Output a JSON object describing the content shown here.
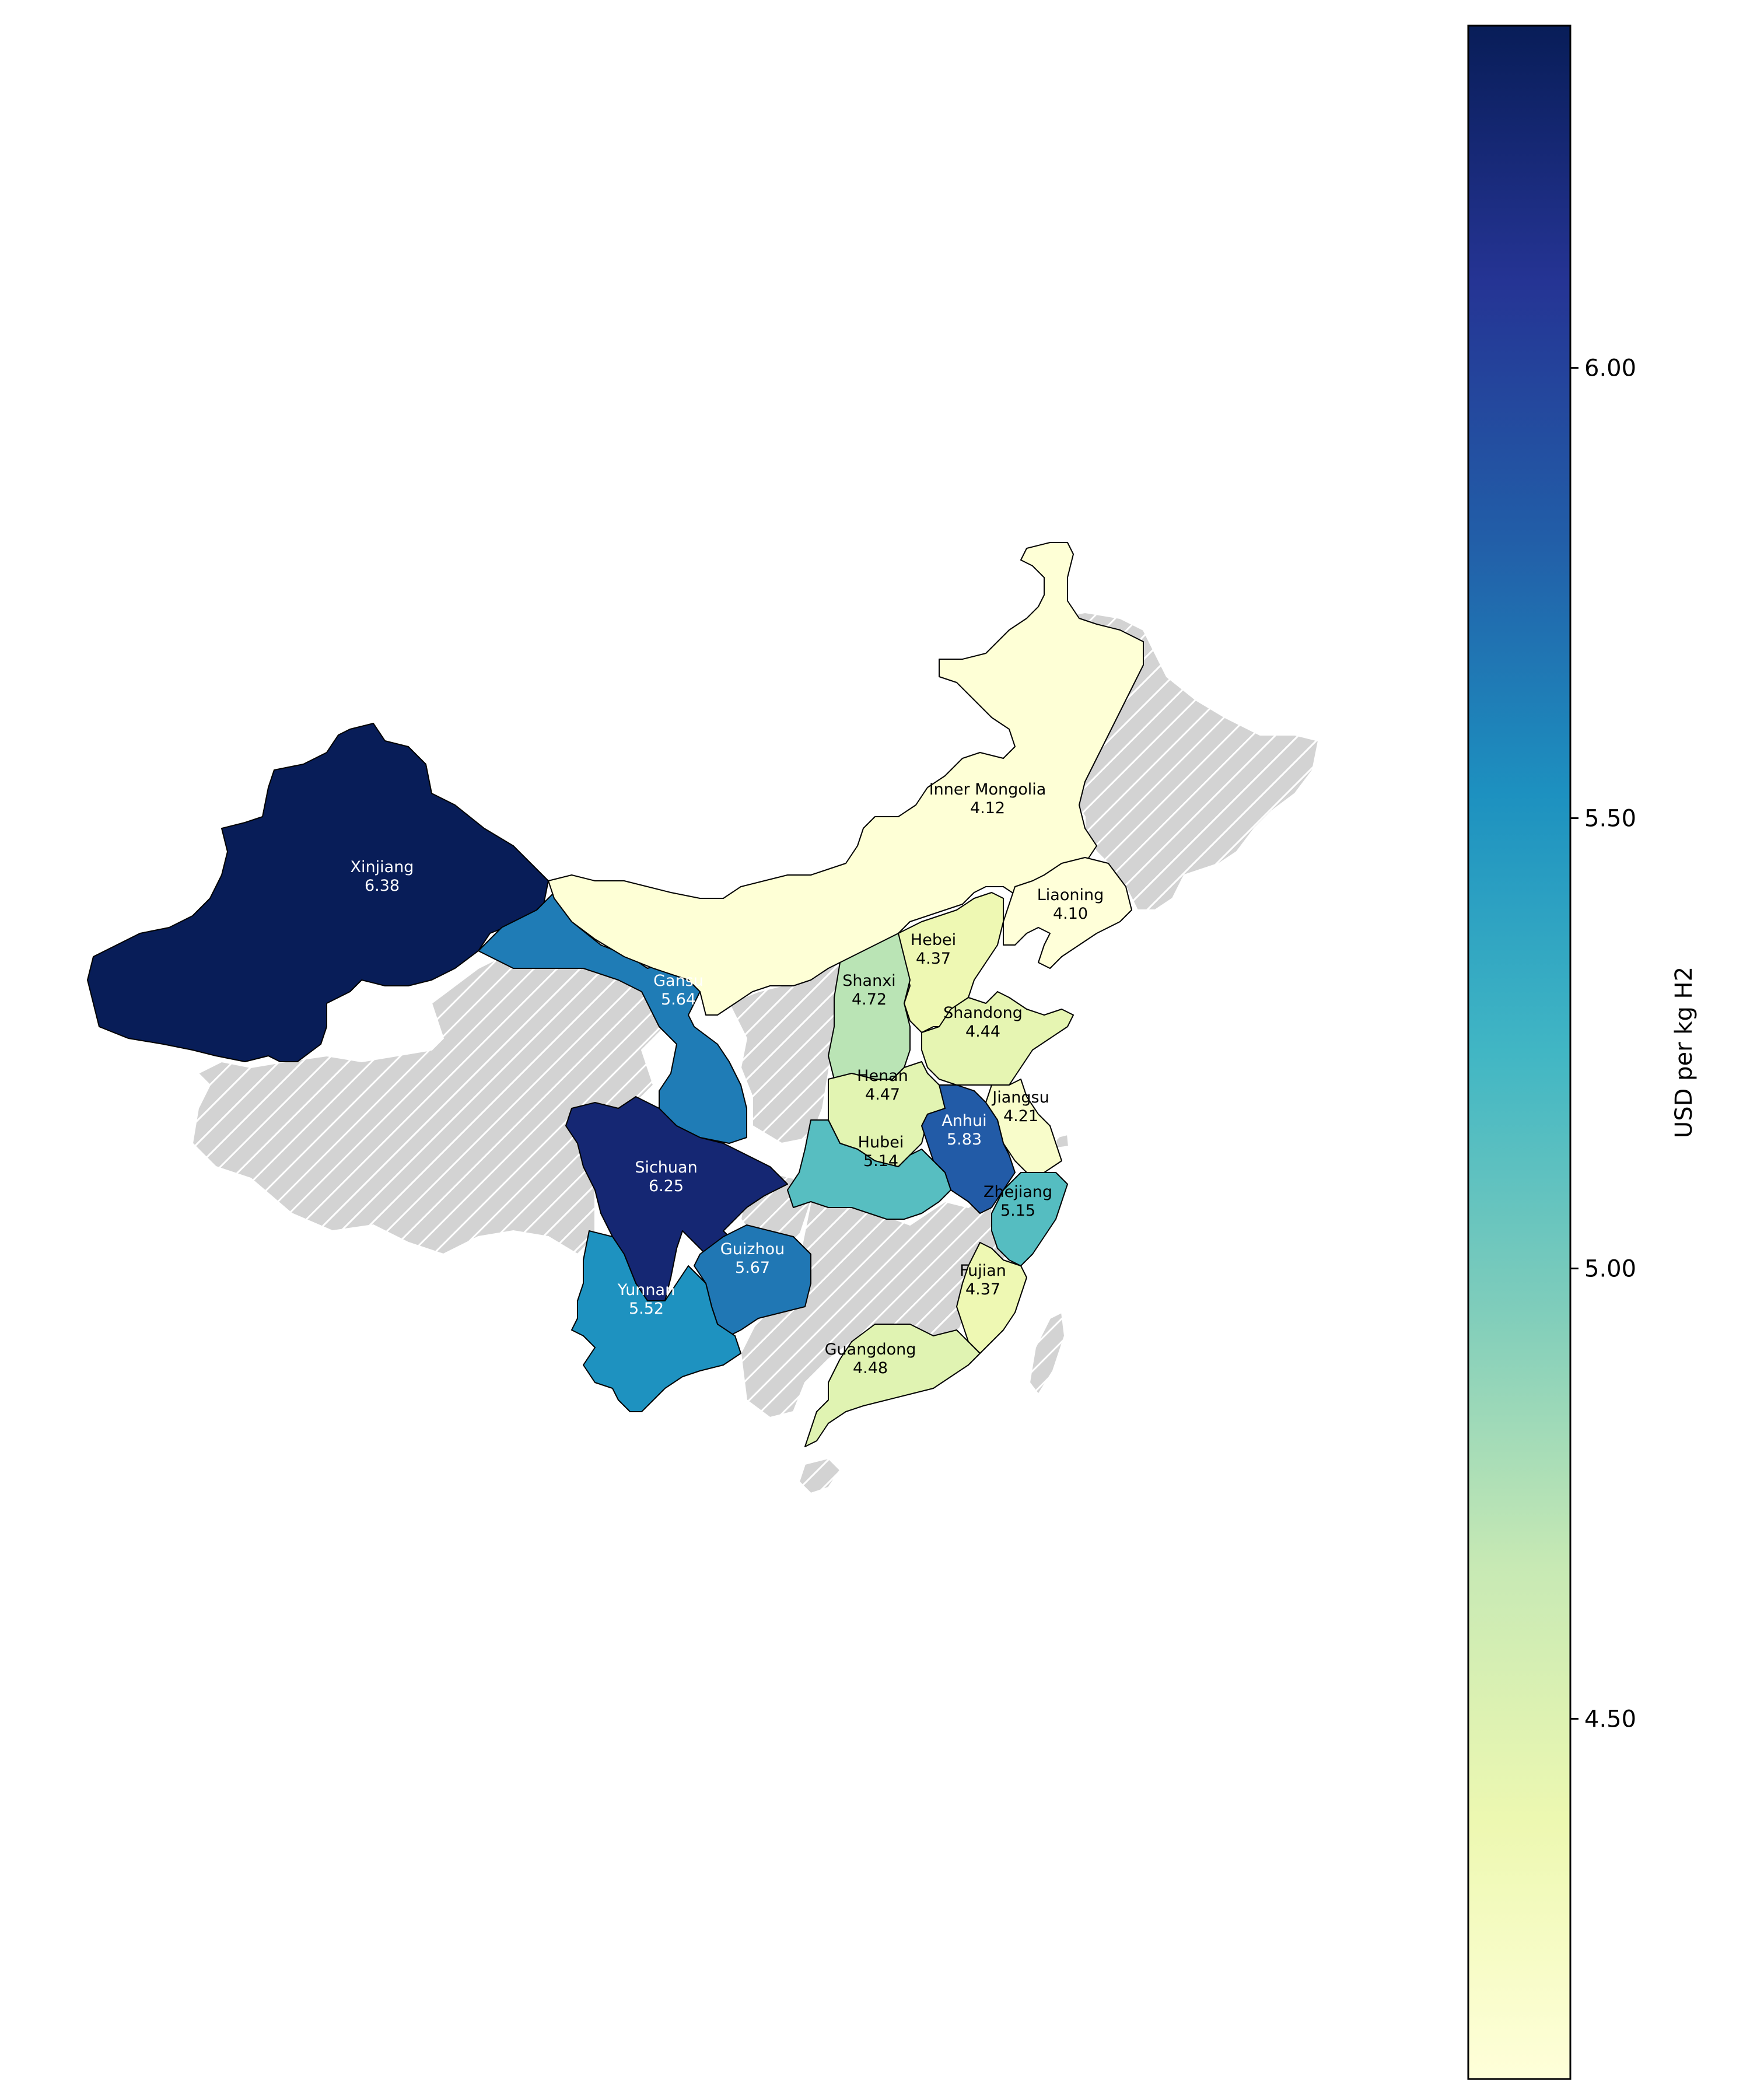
{
  "colorbar": {
    "label": "USD per kg H2",
    "vmin": 4.1,
    "vmax": 6.38,
    "ticks": [
      "4.50",
      "5.00",
      "5.50",
      "6.00"
    ],
    "colormap": "YlGnBu",
    "stops": [
      "#ffffd9",
      "#edf8b1",
      "#c7e9b4",
      "#7fcdbb",
      "#41b6c4",
      "#1d91c0",
      "#225ea8",
      "#253494",
      "#081d58"
    ]
  },
  "nodata_color": "#d3d3d3",
  "provinces": [
    {
      "id": "xinjiang",
      "name": "Xinjiang",
      "value": "6.38"
    },
    {
      "id": "sichuan",
      "name": "Sichuan",
      "value": "6.25"
    },
    {
      "id": "anhui",
      "name": "Anhui",
      "value": "5.83"
    },
    {
      "id": "guizhou",
      "name": "Guizhou",
      "value": "5.67"
    },
    {
      "id": "gansu",
      "name": "Gansu",
      "value": "5.64"
    },
    {
      "id": "yunnan",
      "name": "Yunnan",
      "value": "5.52"
    },
    {
      "id": "zhejiang",
      "name": "Zhejiang",
      "value": "5.15"
    },
    {
      "id": "hubei",
      "name": "Hubei",
      "value": "5.14"
    },
    {
      "id": "shanxi",
      "name": "Shanxi",
      "value": "4.72"
    },
    {
      "id": "guangdong",
      "name": "Guangdong",
      "value": "4.48"
    },
    {
      "id": "henan",
      "name": "Henan",
      "value": "4.47"
    },
    {
      "id": "shandong",
      "name": "Shandong",
      "value": "4.44"
    },
    {
      "id": "hebei",
      "name": "Hebei",
      "value": "4.37"
    },
    {
      "id": "fujian",
      "name": "Fujian",
      "value": "4.37"
    },
    {
      "id": "jiangsu",
      "name": "Jiangsu",
      "value": "4.21"
    },
    {
      "id": "inner-mongolia",
      "name": "Inner Mongolia",
      "value": "4.12"
    },
    {
      "id": "liaoning",
      "name": "Liaoning",
      "value": "4.10"
    }
  ]
}
